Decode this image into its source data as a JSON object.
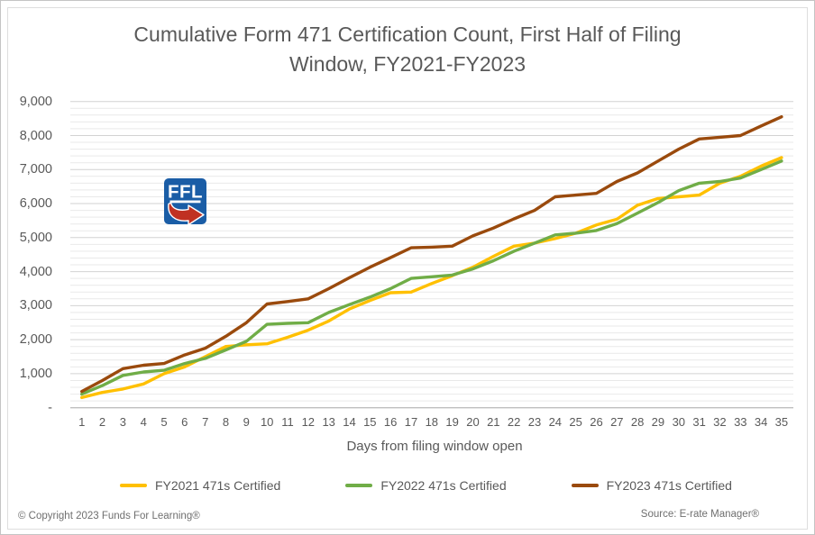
{
  "title": "Cumulative Form 471 Certification Count, First Half of Filing Window, FY2021-FY2023",
  "footer": {
    "left": "© Copyright 2023 Funds For Learning®",
    "right": "Source: E-rate Manager®"
  },
  "logo": {
    "text": "FFL"
  },
  "colors": {
    "fy2021": "#FFC000",
    "fy2022": "#70AD47",
    "fy2023": "#9A4A0D",
    "major_gridline": "#d2d2d2",
    "minor_gridline": "#e9e9e9",
    "axis_line": "#bfbfbf",
    "text_gray": "#595959",
    "logo_blue": "#1A5DA6",
    "logo_red": "#C03122"
  },
  "chart_data": {
    "type": "line",
    "title": "Cumulative Form 471 Certification Count, First Half of Filing Window, FY2021-FY2023",
    "xlabel": "Days from filing window open",
    "ylabel": "",
    "x": [
      1,
      2,
      3,
      4,
      5,
      6,
      7,
      8,
      9,
      10,
      11,
      12,
      13,
      14,
      15,
      16,
      17,
      18,
      19,
      20,
      21,
      22,
      23,
      24,
      25,
      26,
      27,
      28,
      29,
      30,
      31,
      32,
      33,
      34,
      35
    ],
    "ylim": [
      0,
      9000
    ],
    "ytick_interval": 1000,
    "minor_gridline_interval": 200,
    "ytick_labels": [
      "-",
      "1,000",
      "2,000",
      "3,000",
      "4,000",
      "5,000",
      "6,000",
      "7,000",
      "8,000",
      "9,000"
    ],
    "grid": true,
    "legend_position": "bottom",
    "series": [
      {
        "name": "FY2021 471s Certified",
        "color": "#FFC000",
        "values": [
          300,
          450,
          550,
          700,
          1000,
          1200,
          1500,
          1800,
          1850,
          1880,
          2070,
          2280,
          2550,
          2900,
          3150,
          3380,
          3400,
          3650,
          3880,
          4130,
          4450,
          4750,
          4840,
          4970,
          5130,
          5370,
          5540,
          5950,
          6150,
          6200,
          6250,
          6600,
          6800,
          7100,
          7350
        ]
      },
      {
        "name": "FY2022 471s Certified",
        "color": "#70AD47",
        "values": [
          400,
          650,
          950,
          1050,
          1100,
          1300,
          1450,
          1700,
          1950,
          2450,
          2480,
          2500,
          2800,
          3030,
          3250,
          3500,
          3800,
          3850,
          3900,
          4080,
          4320,
          4600,
          4840,
          5080,
          5130,
          5210,
          5410,
          5720,
          6030,
          6380,
          6600,
          6650,
          6750,
          7000,
          7250
        ]
      },
      {
        "name": "FY2023 471s Certified",
        "color": "#9A4A0D",
        "values": [
          480,
          800,
          1150,
          1250,
          1300,
          1550,
          1750,
          2100,
          2500,
          3050,
          3120,
          3200,
          3500,
          3820,
          4130,
          4410,
          4700,
          4720,
          4750,
          5050,
          5280,
          5550,
          5800,
          6200,
          6250,
          6300,
          6650,
          6900,
          7250,
          7600,
          7900,
          7950,
          8000,
          8280,
          8550
        ]
      }
    ]
  }
}
